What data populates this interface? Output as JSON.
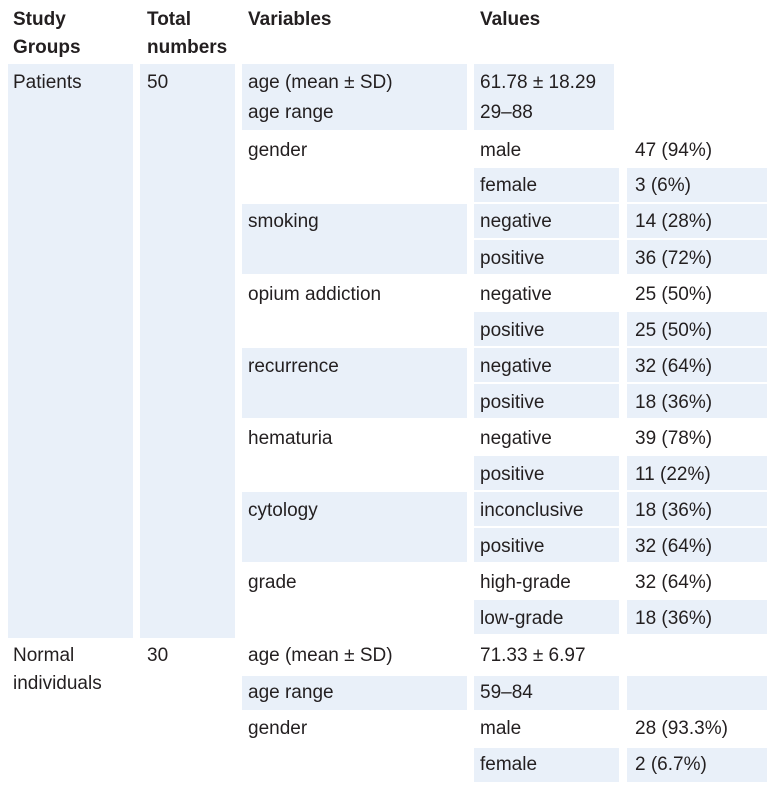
{
  "headers": {
    "study_groups_line1": "Study",
    "study_groups_line2": "Groups",
    "total_numbers_line1": "Total",
    "total_numbers_line2": "numbers",
    "variables": "Variables",
    "values": "Values"
  },
  "patients": {
    "group_label": "Patients",
    "total": "50",
    "age_label": "age (mean ± SD)",
    "age_value": "61.78 ± 18.29",
    "age_range_label": "age range",
    "age_range_value": "29–88",
    "variables": [
      {
        "name": "gender",
        "rows": [
          {
            "category": "male",
            "count": "47 (94%)"
          },
          {
            "category": "female",
            "count": "3 (6%)"
          }
        ]
      },
      {
        "name": "smoking",
        "rows": [
          {
            "category": "negative",
            "count": "14 (28%)"
          },
          {
            "category": "positive",
            "count": "36 (72%)"
          }
        ]
      },
      {
        "name": "opium addiction",
        "rows": [
          {
            "category": "negative",
            "count": "25 (50%)"
          },
          {
            "category": "positive",
            "count": "25 (50%)"
          }
        ]
      },
      {
        "name": "recurrence",
        "rows": [
          {
            "category": "negative",
            "count": "32 (64%)"
          },
          {
            "category": "positive",
            "count": "18 (36%)"
          }
        ]
      },
      {
        "name": "hematuria",
        "rows": [
          {
            "category": "negative",
            "count": "39 (78%)"
          },
          {
            "category": "positive",
            "count": "11 (22%)"
          }
        ]
      },
      {
        "name": "cytology",
        "rows": [
          {
            "category": "inconclusive",
            "count": "18 (36%)"
          },
          {
            "category": "positive",
            "count": "32 (64%)"
          }
        ]
      },
      {
        "name": "grade",
        "rows": [
          {
            "category": "high-grade",
            "count": "32 (64%)"
          },
          {
            "category": "low-grade",
            "count": "18 (36%)"
          }
        ]
      }
    ]
  },
  "normal": {
    "group_label_line1": "Normal",
    "group_label_line2": "individuals",
    "total": "30",
    "age_label": "age (mean ± SD)",
    "age_value": "71.33 ± 6.97",
    "age_range_label": "age range",
    "age_range_value": "59–84",
    "gender_label": "gender",
    "rows": [
      {
        "category": "male",
        "count": "28 (93.3%)"
      },
      {
        "category": "female",
        "count": "2 (6.7%)"
      }
    ]
  },
  "colors": {
    "shade": "#e9f0f9",
    "text": "#231f20"
  }
}
